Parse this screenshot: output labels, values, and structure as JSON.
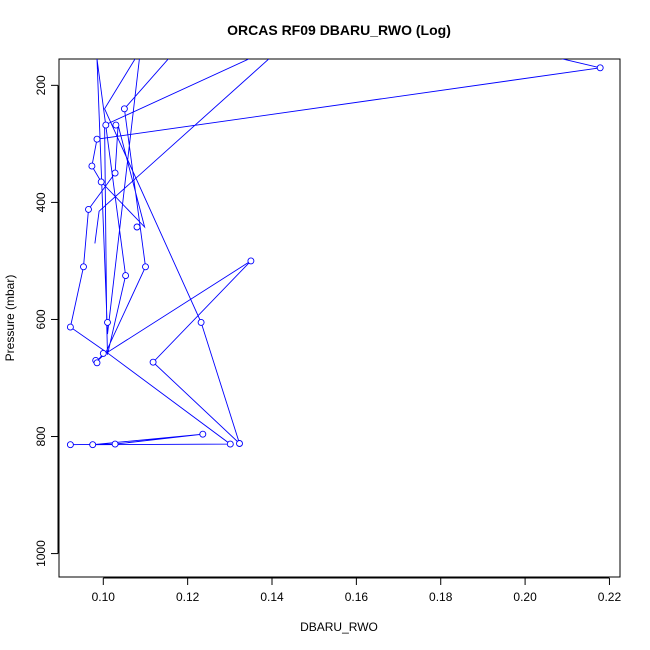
{
  "chart_data": {
    "type": "line",
    "title": "ORCAS RF09 DBARU_RWO (Log)",
    "xlabel": "DBARU_RWO",
    "ylabel": "Pressure (mbar)",
    "xlim": [
      0.0895,
      0.2225
    ],
    "ylim": [
      1040,
      155
    ],
    "y_inverted": true,
    "grid": false,
    "x_ticks": [
      "0.10",
      "0.12",
      "0.14",
      "0.16",
      "0.18",
      "0.20",
      "0.22"
    ],
    "x_tick_values": [
      0.1,
      0.12,
      0.14,
      0.16,
      0.18,
      0.2,
      0.22
    ],
    "y_ticks": [
      "200",
      "400",
      "600",
      "800",
      "1000"
    ],
    "y_tick_values": [
      200,
      400,
      600,
      800,
      1000
    ],
    "colors": {
      "series": "#0000ff"
    },
    "series": [
      {
        "points": [
          [
            0.0922,
            814
          ],
          [
            0.1028,
            813
          ],
          [
            0.1236,
            796
          ],
          [
            0.0975,
            814
          ],
          [
            0.1301,
            813
          ],
          [
            0.1006,
            655
          ],
          [
            0.0922,
            613
          ],
          [
            0.0953,
            510
          ],
          [
            0.0965,
            412
          ],
          [
            0.1028,
            350
          ],
          [
            0.1035,
            268
          ],
          [
            0.1098,
            442
          ],
          [
            0.0995,
            365
          ],
          [
            0.0973,
            338
          ],
          [
            0.0985,
            292
          ],
          [
            0.2178,
            170
          ],
          [
            0.206,
            150
          ],
          [
            0.136,
            150
          ],
          [
            0.1003,
            268
          ],
          [
            0.1008,
            605
          ],
          [
            0.101,
            660
          ],
          [
            0.1053,
            525
          ],
          [
            0.0985,
            155
          ],
          [
            0.101,
            625
          ],
          [
            0.1088,
            140
          ],
          [
            0.1003,
            240
          ],
          [
            0.1232,
            605
          ],
          [
            0.1323,
            812
          ],
          [
            0.1118,
            673
          ],
          [
            0.135,
            500
          ],
          [
            0.0995,
            663
          ],
          [
            0.0983,
            673
          ],
          [
            0.1005,
            658
          ],
          [
            0.11,
            510
          ],
          [
            0.105,
            240
          ],
          [
            0.116,
            150
          ],
          [
            0.14,
            150
          ],
          [
            0.099,
            415
          ],
          [
            0.098,
            470
          ]
        ],
        "markers": [
          [
            0.0922,
            814
          ],
          [
            0.0975,
            814
          ],
          [
            0.1028,
            813
          ],
          [
            0.1236,
            796
          ],
          [
            0.1301,
            813
          ],
          [
            0.1323,
            812
          ],
          [
            0.0922,
            613
          ],
          [
            0.101,
            605
          ],
          [
            0.1232,
            605
          ],
          [
            0.135,
            500
          ],
          [
            0.1118,
            673
          ],
          [
            0.0982,
            670
          ],
          [
            0.0985,
            674
          ],
          [
            0.1,
            658
          ],
          [
            0.0953,
            510
          ],
          [
            0.11,
            510
          ],
          [
            0.1053,
            525
          ],
          [
            0.0965,
            412
          ],
          [
            0.108,
            442
          ],
          [
            0.0995,
            365
          ],
          [
            0.1028,
            350
          ],
          [
            0.0973,
            338
          ],
          [
            0.0985,
            292
          ],
          [
            0.1006,
            268
          ],
          [
            0.103,
            268
          ],
          [
            0.105,
            240
          ],
          [
            0.2178,
            170
          ]
        ]
      }
    ]
  }
}
